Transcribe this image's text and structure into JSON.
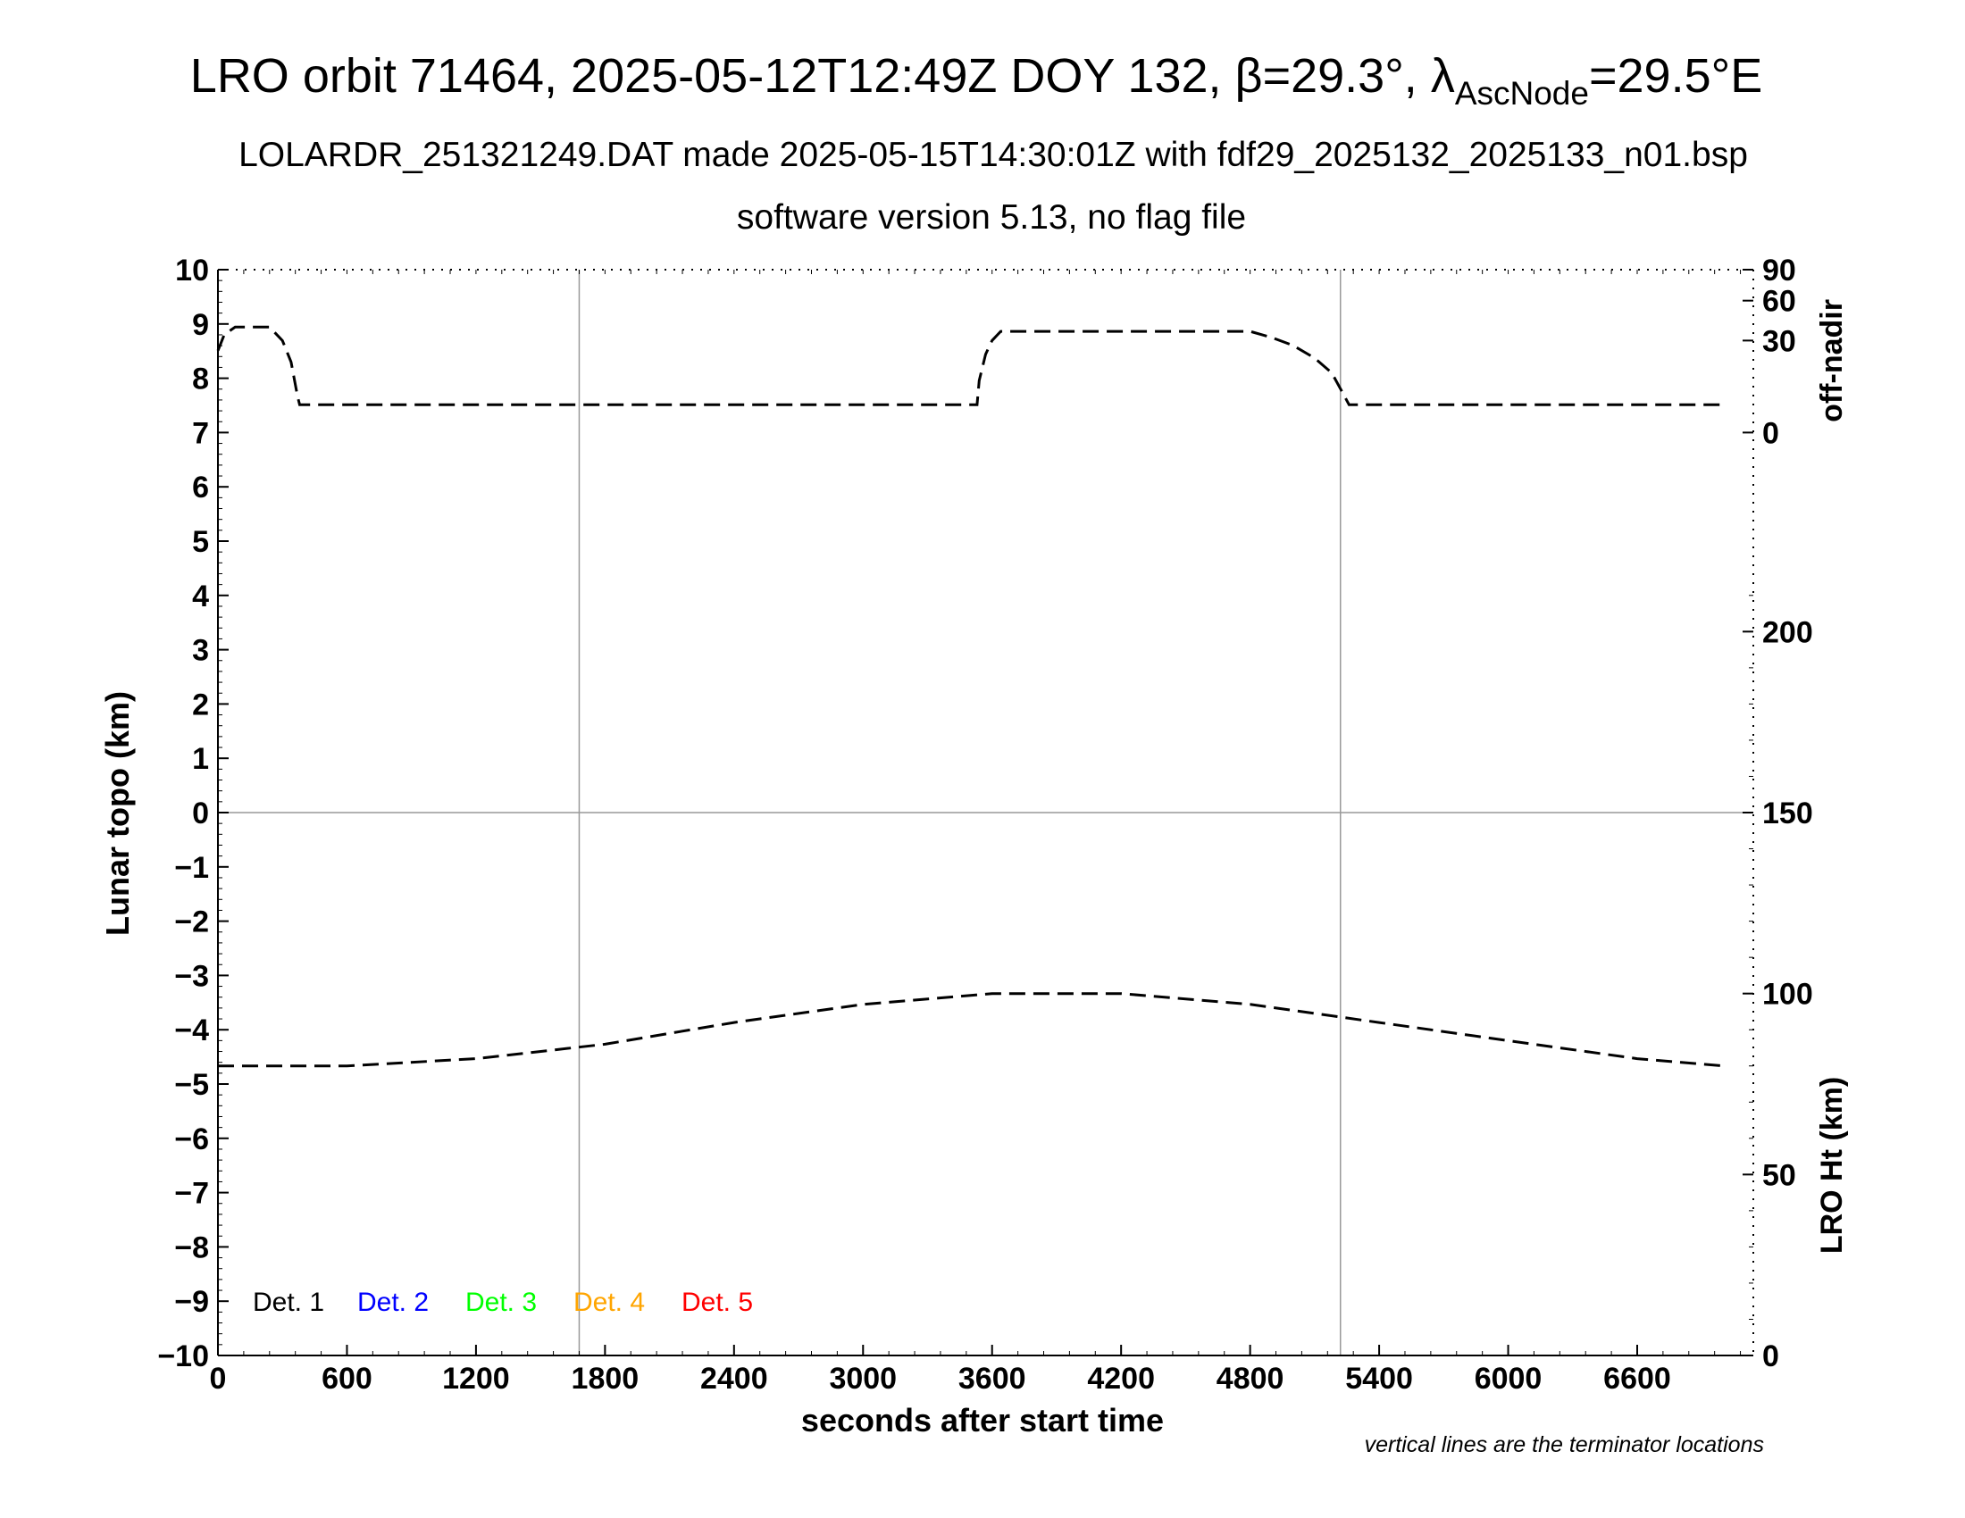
{
  "title": {
    "line1_prefix": "LRO orbit 71464, 2025-05-12T12:49Z DOY 132, ",
    "beta_symbol": "β",
    "beta_value": "=29.3°, ",
    "lambda_symbol": "λ",
    "lambda_subscript": "AscNode",
    "lambda_value": "=29.5°E",
    "line2": "LOLARDR_251321249.DAT made 2025-05-15T14:30:01Z with fdf29_2025132_2025133_n01.bsp",
    "line3": "software version 5.13, no flag file"
  },
  "footnote": "vertical lines are the terminator locations",
  "chart_data": {
    "type": "line",
    "xlabel": "seconds after start time",
    "ylabel_left": "Lunar topo (km)",
    "ylabel_right_top": "off-nadir",
    "ylabel_right_bottom": "LRO Ht (km)",
    "xlim": [
      0,
      7140
    ],
    "xticks": [
      0,
      600,
      1200,
      1800,
      2400,
      3000,
      3600,
      4200,
      4800,
      5400,
      6000,
      6600
    ],
    "ylim_left": [
      -10,
      10
    ],
    "yticks_left": [
      10,
      9,
      8,
      7,
      6,
      5,
      4,
      3,
      2,
      1,
      0,
      -1,
      -2,
      -3,
      -4,
      -5,
      -6,
      -7,
      -8,
      -9,
      -10
    ],
    "right_top_axis": {
      "ticks": [
        0,
        30,
        60,
        90
      ],
      "range": [
        0,
        90
      ]
    },
    "right_bottom_axis": {
      "ticks": [
        0,
        50,
        100,
        150,
        200
      ],
      "range": [
        0,
        300
      ]
    },
    "terminator_lines_x": [
      1680,
      5220
    ],
    "zero_line_y": 0,
    "legend": [
      {
        "label": "Det. 1",
        "color": "#000000"
      },
      {
        "label": "Det. 2",
        "color": "#0000ff"
      },
      {
        "label": "Det. 3",
        "color": "#00ff00"
      },
      {
        "label": "Det. 4",
        "color": "#ffa500"
      },
      {
        "label": "Det. 5",
        "color": "#ff0000"
      }
    ],
    "series": [
      {
        "axis": "right_top",
        "style": "dashed",
        "x": [
          0,
          30,
          80,
          150,
          240,
          300,
          340,
          370,
          380,
          600,
          1200,
          1800,
          2400,
          3000,
          3530,
          3540,
          3570,
          3600,
          3640,
          3700,
          4200,
          4800,
          4900,
          5000,
          5100,
          5180,
          5230,
          5260,
          6000,
          6600,
          7000
        ],
        "values": [
          24,
          34,
          39,
          39,
          39,
          30,
          18,
          5,
          3,
          3,
          3,
          3,
          3,
          3,
          3,
          10,
          22,
          30,
          36,
          36,
          36,
          36,
          32,
          27,
          20,
          13,
          6,
          3,
          3,
          3,
          3
        ]
      },
      {
        "axis": "right_bottom",
        "style": "dashed",
        "x": [
          0,
          600,
          1200,
          1800,
          2400,
          3000,
          3600,
          4200,
          4800,
          5400,
          6000,
          6600,
          7000
        ],
        "values": [
          80,
          80,
          82,
          86,
          92,
          97,
          100,
          100,
          97,
          92,
          87,
          82,
          80
        ]
      }
    ]
  }
}
